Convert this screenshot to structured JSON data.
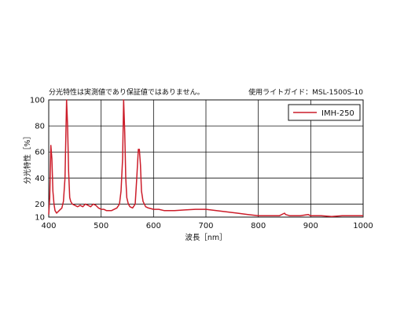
{
  "notes": {
    "left": "分光特性は実測値であり保証値ではありません。",
    "right": "使用ライトガイド：MSL-1500S-10"
  },
  "chart_data": {
    "type": "line",
    "xlabel": "波長［nm］",
    "ylabel": "分光特性［%］",
    "xlim": [
      400,
      1000
    ],
    "ylim": [
      10,
      100
    ],
    "x_ticks": [
      "400",
      "500",
      "600",
      "700",
      "800",
      "900",
      "1000"
    ],
    "y_ticks": [
      "10",
      "20",
      "40",
      "60",
      "80",
      "100"
    ],
    "y_tick_values": [
      10,
      20,
      40,
      60,
      80,
      100
    ],
    "grid": true,
    "legend_position": "top-right",
    "series": [
      {
        "name": "IMH-250",
        "color": "#cc1d2a",
        "points": [
          [
            400,
            12
          ],
          [
            402,
            25
          ],
          [
            404,
            65
          ],
          [
            406,
            55
          ],
          [
            408,
            30
          ],
          [
            410,
            20
          ],
          [
            412,
            15
          ],
          [
            415,
            13
          ],
          [
            420,
            15
          ],
          [
            425,
            17
          ],
          [
            428,
            22
          ],
          [
            431,
            40
          ],
          [
            434,
            100
          ],
          [
            436,
            80
          ],
          [
            438,
            45
          ],
          [
            440,
            25
          ],
          [
            442,
            22
          ],
          [
            445,
            20
          ],
          [
            450,
            19
          ],
          [
            455,
            18
          ],
          [
            460,
            19
          ],
          [
            465,
            18
          ],
          [
            470,
            20
          ],
          [
            475,
            19
          ],
          [
            480,
            18
          ],
          [
            485,
            20
          ],
          [
            490,
            19
          ],
          [
            495,
            17
          ],
          [
            500,
            16
          ],
          [
            505,
            16
          ],
          [
            510,
            15
          ],
          [
            515,
            15
          ],
          [
            520,
            15
          ],
          [
            525,
            16
          ],
          [
            530,
            17
          ],
          [
            535,
            20
          ],
          [
            538,
            30
          ],
          [
            541,
            55
          ],
          [
            543,
            100
          ],
          [
            545,
            75
          ],
          [
            547,
            40
          ],
          [
            549,
            25
          ],
          [
            552,
            20
          ],
          [
            555,
            18
          ],
          [
            560,
            17
          ],
          [
            565,
            20
          ],
          [
            568,
            40
          ],
          [
            571,
            62
          ],
          [
            573,
            62
          ],
          [
            575,
            50
          ],
          [
            577,
            30
          ],
          [
            580,
            22
          ],
          [
            585,
            18
          ],
          [
            590,
            17
          ],
          [
            600,
            16
          ],
          [
            610,
            16
          ],
          [
            620,
            15
          ],
          [
            640,
            15
          ],
          [
            660,
            15.5
          ],
          [
            680,
            16
          ],
          [
            700,
            16
          ],
          [
            720,
            15
          ],
          [
            740,
            14
          ],
          [
            760,
            13
          ],
          [
            780,
            12
          ],
          [
            800,
            11
          ],
          [
            820,
            11
          ],
          [
            840,
            11
          ],
          [
            850,
            13
          ],
          [
            852,
            12
          ],
          [
            860,
            11
          ],
          [
            880,
            11
          ],
          [
            895,
            12
          ],
          [
            900,
            11
          ],
          [
            920,
            11
          ],
          [
            940,
            10.5
          ],
          [
            960,
            11
          ],
          [
            980,
            11
          ],
          [
            1000,
            11
          ]
        ]
      }
    ]
  }
}
